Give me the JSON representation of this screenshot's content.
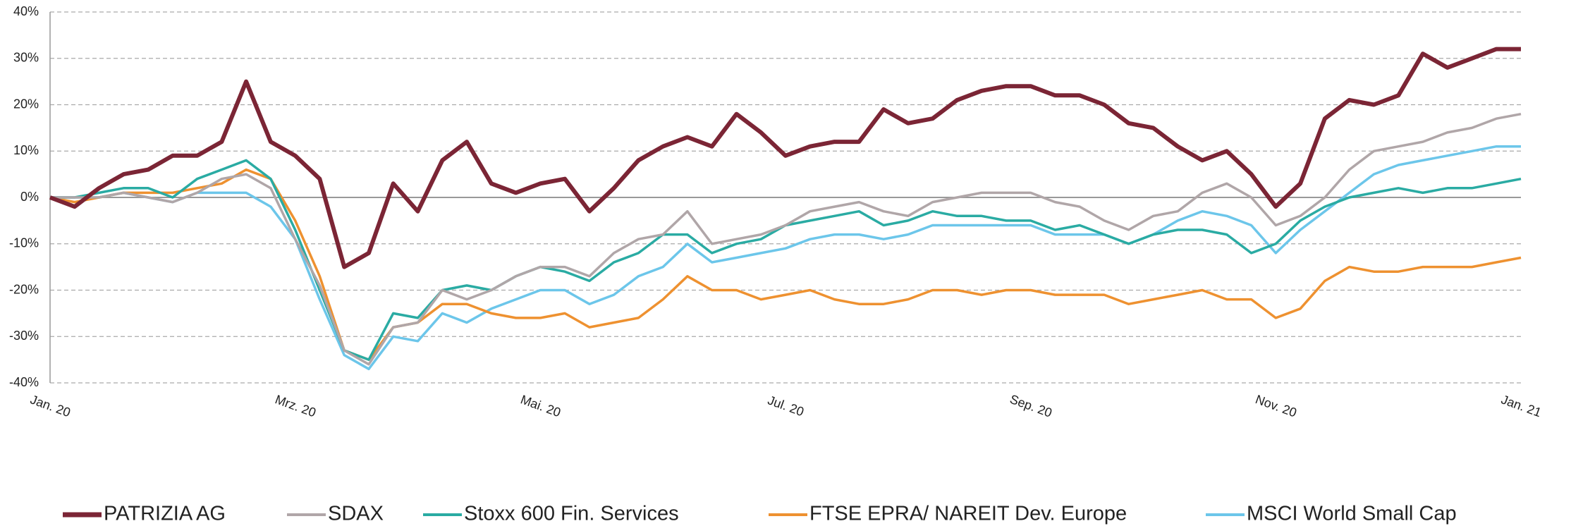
{
  "chart_data": {
    "type": "line",
    "categories": [
      "Jan. 20",
      null,
      null,
      null,
      null,
      null,
      null,
      null,
      null,
      null,
      "Mrz. 20",
      null,
      null,
      null,
      null,
      null,
      null,
      null,
      null,
      null,
      "Mai. 20",
      null,
      null,
      null,
      null,
      null,
      null,
      null,
      null,
      null,
      "Jul. 20",
      null,
      null,
      null,
      null,
      null,
      null,
      null,
      null,
      null,
      "Sep. 20",
      null,
      null,
      null,
      null,
      null,
      null,
      null,
      null,
      null,
      "Nov. 20",
      null,
      null,
      null,
      null,
      null,
      null,
      null,
      null,
      null,
      "Jan. 21"
    ],
    "ylim": [
      -40,
      40
    ],
    "yticks": [
      {
        "value": -40,
        "label": "-40%"
      },
      {
        "value": -30,
        "label": "-30%"
      },
      {
        "value": -20,
        "label": "-20%"
      },
      {
        "value": -10,
        "label": "-10%"
      },
      {
        "value": 0,
        "label": "0%"
      },
      {
        "value": 10,
        "label": "10%"
      },
      {
        "value": 20,
        "label": "20%"
      },
      {
        "value": 30,
        "label": "30%"
      },
      {
        "value": 40,
        "label": "40%"
      }
    ],
    "grid": true,
    "legend": "bottom",
    "series": [
      {
        "name": "PATRIZIA AG",
        "color": "#7b2535",
        "values": [
          0,
          -2,
          2,
          5,
          6,
          9,
          9,
          12,
          25,
          12,
          9,
          4,
          -15,
          -12,
          3,
          -3,
          8,
          12,
          3,
          1,
          3,
          4,
          -3,
          2,
          8,
          11,
          13,
          11,
          18,
          14,
          9,
          11,
          12,
          12,
          19,
          16,
          17,
          21,
          23,
          24,
          24,
          22,
          22,
          20,
          16,
          15,
          11,
          8,
          10,
          5,
          -2,
          3,
          17,
          21,
          20,
          22,
          31,
          28,
          30,
          32,
          32
        ]
      },
      {
        "name": "SDAX",
        "color": "#b0a6a8",
        "values": [
          0,
          0,
          0,
          1,
          0,
          -1,
          1,
          4,
          5,
          2,
          -9,
          -19,
          -33,
          -36,
          -28,
          -27,
          -20,
          -22,
          -20,
          -17,
          -15,
          -15,
          -17,
          -12,
          -9,
          -8,
          -3,
          -10,
          -9,
          -8,
          -6,
          -3,
          -2,
          -1,
          -3,
          -4,
          -1,
          0,
          1,
          1,
          1,
          -1,
          -2,
          -5,
          -7,
          -4,
          -3,
          1,
          3,
          0,
          -6,
          -4,
          0,
          6,
          10,
          11,
          12,
          14,
          15,
          17,
          18
        ]
      },
      {
        "name": "Stoxx 600 Fin. Services",
        "color": "#2aaba3",
        "values": [
          0,
          0,
          1,
          2,
          2,
          0,
          4,
          6,
          8,
          4,
          -7,
          -20,
          -33,
          -35,
          -25,
          -26,
          -20,
          -19,
          -20,
          -17,
          -15,
          -16,
          -18,
          -14,
          -12,
          -8,
          -8,
          -12,
          -10,
          -9,
          -6,
          -5,
          -4,
          -3,
          -6,
          -5,
          -3,
          -4,
          -4,
          -5,
          -5,
          -7,
          -6,
          -8,
          -10,
          -8,
          -7,
          -7,
          -8,
          -12,
          -10,
          -5,
          -2,
          0,
          1,
          2,
          1,
          2,
          2,
          3,
          4
        ]
      },
      {
        "name": "FTSE EPRA/ NAREIT Dev. Europe",
        "color": "#ee9130",
        "values": [
          0,
          -1,
          0,
          1,
          1,
          1,
          2,
          3,
          6,
          4,
          -5,
          -17,
          -33,
          -35,
          -28,
          -27,
          -23,
          -23,
          -25,
          -26,
          -26,
          -25,
          -28,
          -27,
          -26,
          -22,
          -17,
          -20,
          -20,
          -22,
          -21,
          -20,
          -22,
          -23,
          -23,
          -22,
          -20,
          -20,
          -21,
          -20,
          -20,
          -21,
          -21,
          -21,
          -23,
          -22,
          -21,
          -20,
          -22,
          -22,
          -26,
          -24,
          -18,
          -15,
          -16,
          -16,
          -15,
          -15,
          -15,
          -14,
          -13
        ]
      },
      {
        "name": "MSCI World Small Cap",
        "color": "#6cc6ea",
        "values": [
          0,
          0,
          0,
          1,
          0,
          -1,
          1,
          1,
          1,
          -2,
          -9,
          -22,
          -34,
          -37,
          -30,
          -31,
          -25,
          -27,
          -24,
          -22,
          -20,
          -20,
          -23,
          -21,
          -17,
          -15,
          -10,
          -14,
          -13,
          -12,
          -11,
          -9,
          -8,
          -8,
          -9,
          -8,
          -6,
          -6,
          -6,
          -6,
          -6,
          -8,
          -8,
          -8,
          -10,
          -8,
          -5,
          -3,
          -4,
          -6,
          -12,
          -7,
          -3,
          1,
          5,
          7,
          8,
          9,
          10,
          11,
          11
        ]
      }
    ]
  }
}
